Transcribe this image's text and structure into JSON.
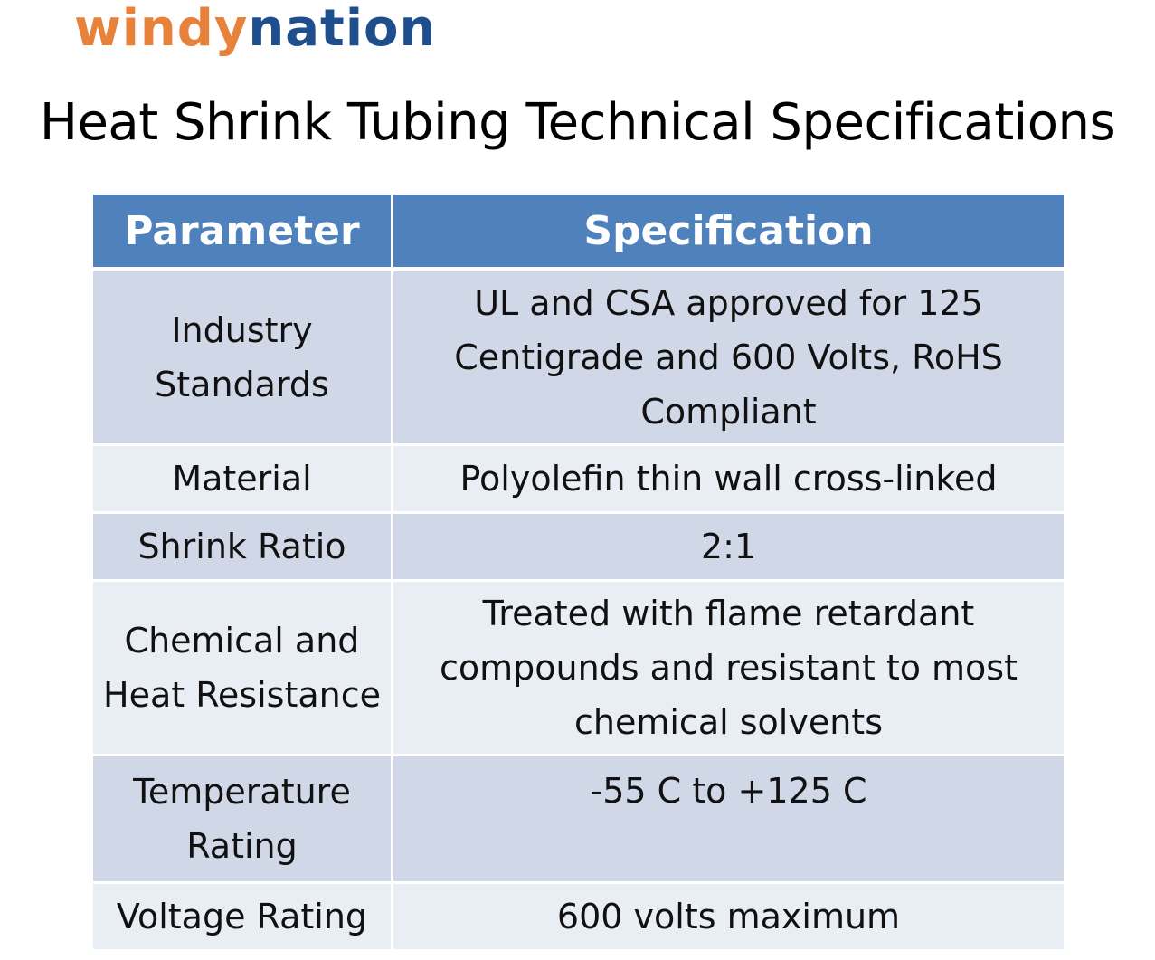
{
  "logo": {
    "part1": "windy",
    "part2": "nation",
    "colors": {
      "part1": "#e8813a",
      "part2": "#1f4e8c"
    }
  },
  "title": "Heat Shrink Tubing Technical Specifications",
  "table": {
    "headers": [
      "Parameter",
      "Specification"
    ],
    "header_color": "#4f81bd",
    "row_colors": [
      "#d0d8e8",
      "#e9edf4"
    ],
    "rows": [
      {
        "parameter": "Industry Standards",
        "specification": "UL and CSA approved for 125 Centigrade and 600 Volts, RoHS Compliant"
      },
      {
        "parameter": "Material",
        "specification": "Polyolefin thin wall cross-linked"
      },
      {
        "parameter": "Shrink Ratio",
        "specification": "2:1"
      },
      {
        "parameter": "Chemical and Heat Resistance",
        "specification": "Treated with flame retardant compounds and resistant to most chemical solvents"
      },
      {
        "parameter": "Temperature Rating",
        "specification": "-55 C to +125 C"
      },
      {
        "parameter": "Voltage Rating",
        "specification": "600 volts maximum"
      }
    ]
  }
}
